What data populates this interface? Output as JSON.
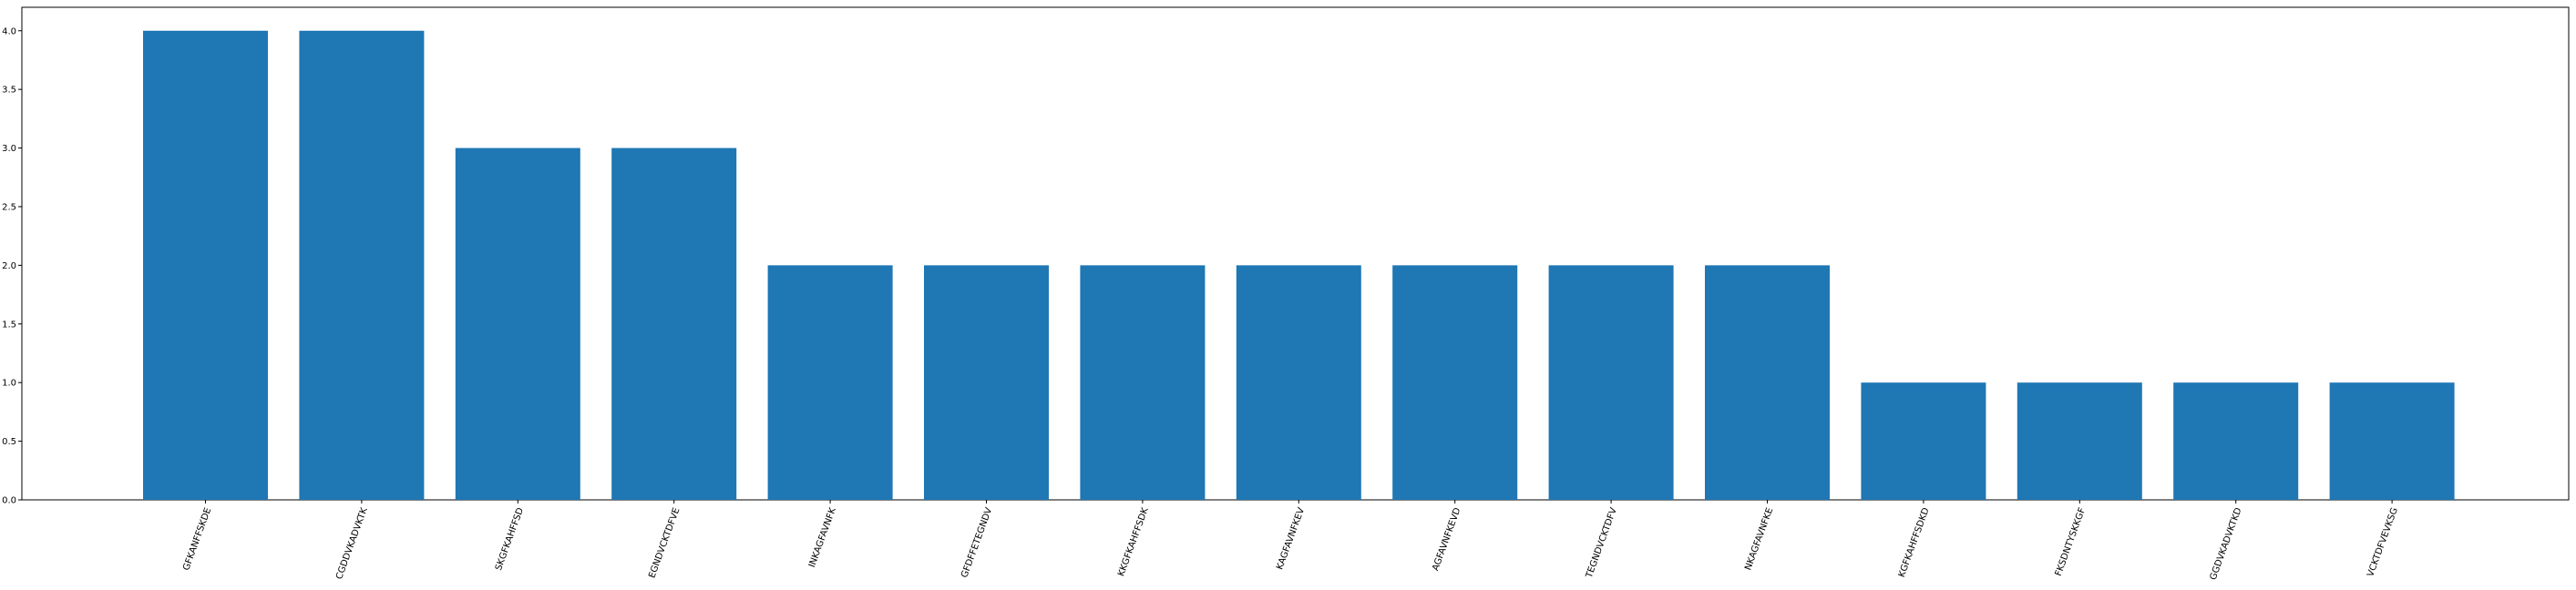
{
  "chart_data": {
    "type": "bar",
    "categories": [
      "GFKANFFSKDE",
      "CGDDVKADVKTK",
      "SKGFKAHFFSD",
      "EGNDVCKTDFVE",
      "INKAGFAVNFK",
      "GFDFFETEGNDV",
      "KKGFKAHFFSDK",
      "KAGFAVNFKEV",
      "AGFAVNFKEVD",
      "TEGNDVCKTDFV",
      "NKAGFAVNFKE",
      "KGFKAHFFSDKD",
      "FKSDNTYSKKGF",
      "GGDVKADVKTKD",
      "VCKTDFVEVKSG"
    ],
    "values": [
      4,
      4,
      3,
      3,
      2,
      2,
      2,
      2,
      2,
      2,
      2,
      1,
      1,
      1,
      1
    ],
    "title": "",
    "xlabel": "",
    "ylabel": "",
    "ylim": [
      0,
      4.2
    ],
    "yticks": [
      "0.0",
      "0.5",
      "1.0",
      "1.5",
      "2.0",
      "2.5",
      "3.0",
      "3.5",
      "4.0"
    ],
    "grid": false,
    "bar_color": "#1f77b4"
  }
}
